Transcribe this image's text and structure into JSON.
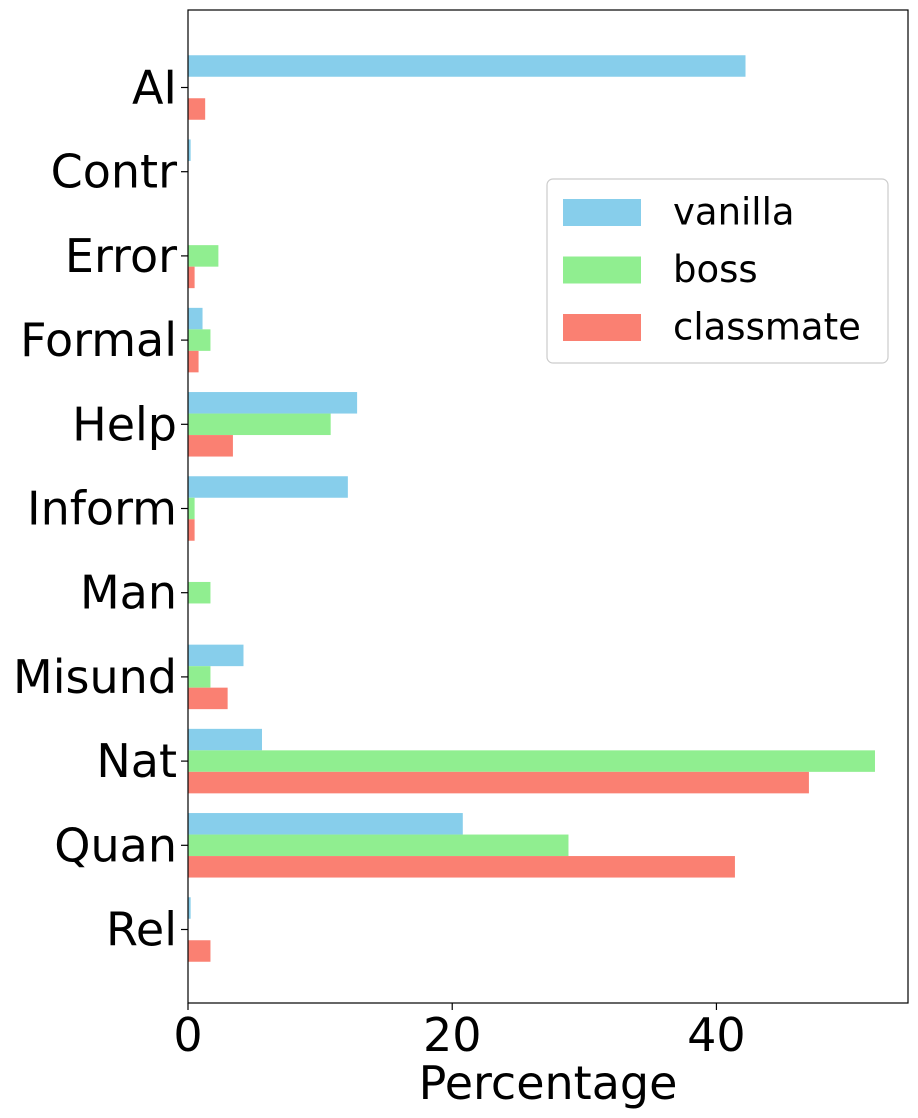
{
  "chart_data": {
    "type": "bar",
    "orientation": "horizontal",
    "title": "",
    "xlabel": "Percentage",
    "ylabel": "",
    "xlim": [
      0,
      54.5
    ],
    "xticks": [
      0,
      20,
      40
    ],
    "grid": false,
    "legend_position": "upper-right",
    "categories": [
      "AI",
      "Contr",
      "Error",
      "Formal",
      "Help",
      "Inform",
      "Man",
      "Misund",
      "Nat",
      "Quan",
      "Rel"
    ],
    "series": [
      {
        "name": "vanilla",
        "color": "#87ceeb",
        "values": [
          42.2,
          0.2,
          0,
          1.1,
          12.8,
          12.1,
          0,
          4.2,
          5.6,
          20.8,
          0.2
        ]
      },
      {
        "name": "boss",
        "color": "#90ee90",
        "values": [
          0,
          0,
          2.3,
          1.7,
          10.8,
          0.5,
          1.7,
          1.7,
          52.0,
          28.8,
          0
        ]
      },
      {
        "name": "classmate",
        "color": "#fa8072",
        "values": [
          1.3,
          0,
          0.5,
          0.8,
          3.4,
          0.5,
          0,
          3.0,
          47.0,
          41.4,
          1.7
        ]
      }
    ]
  }
}
